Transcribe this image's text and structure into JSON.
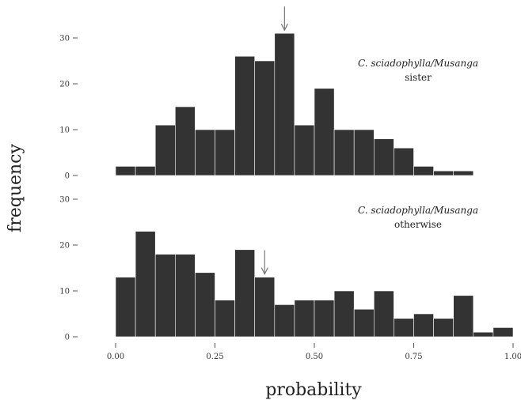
{
  "chart_data": [
    {
      "type": "bar",
      "panel": "top",
      "label_species": "C. sciadophylla/Musanga",
      "label_condition": "sister",
      "bin_width": 0.05,
      "x": [
        0.0,
        0.05,
        0.1,
        0.15,
        0.2,
        0.25,
        0.3,
        0.35,
        0.4,
        0.45,
        0.5,
        0.55,
        0.6,
        0.65,
        0.7,
        0.75,
        0.8,
        0.85
      ],
      "values": [
        2,
        2,
        11,
        15,
        10,
        10,
        26,
        25,
        31,
        11,
        19,
        10,
        10,
        8,
        6,
        2,
        1,
        1
      ],
      "marker_x": 0.425,
      "ylim": [
        0,
        30
      ],
      "yticks": [
        0,
        10,
        20,
        30
      ]
    },
    {
      "type": "bar",
      "panel": "bottom",
      "label_species": "C. sciadophylla/Musanga",
      "label_condition": "otherwise",
      "bin_width": 0.05,
      "x": [
        0.0,
        0.05,
        0.1,
        0.15,
        0.2,
        0.25,
        0.3,
        0.35,
        0.4,
        0.45,
        0.5,
        0.55,
        0.6,
        0.65,
        0.7,
        0.75,
        0.8,
        0.85,
        0.9,
        0.95
      ],
      "values": [
        13,
        23,
        18,
        18,
        14,
        8,
        19,
        13,
        7,
        8,
        8,
        10,
        6,
        10,
        4,
        5,
        4,
        9,
        1,
        2
      ],
      "marker_x": 0.375,
      "ylim": [
        0,
        30
      ],
      "yticks": [
        0,
        10,
        20,
        30
      ]
    }
  ],
  "axes": {
    "xlabel": "probability",
    "ylabel": "frequency",
    "xlim": [
      0,
      1
    ],
    "xticks": [
      "0.00",
      "0.25",
      "0.50",
      "0.75",
      "1.00"
    ],
    "xtick_values": [
      0,
      0.25,
      0.5,
      0.75,
      1.0
    ]
  },
  "colors": {
    "bar": "#333333",
    "bar_edge": "#ffffff",
    "axis": "#555555",
    "arrow": "#777777"
  }
}
